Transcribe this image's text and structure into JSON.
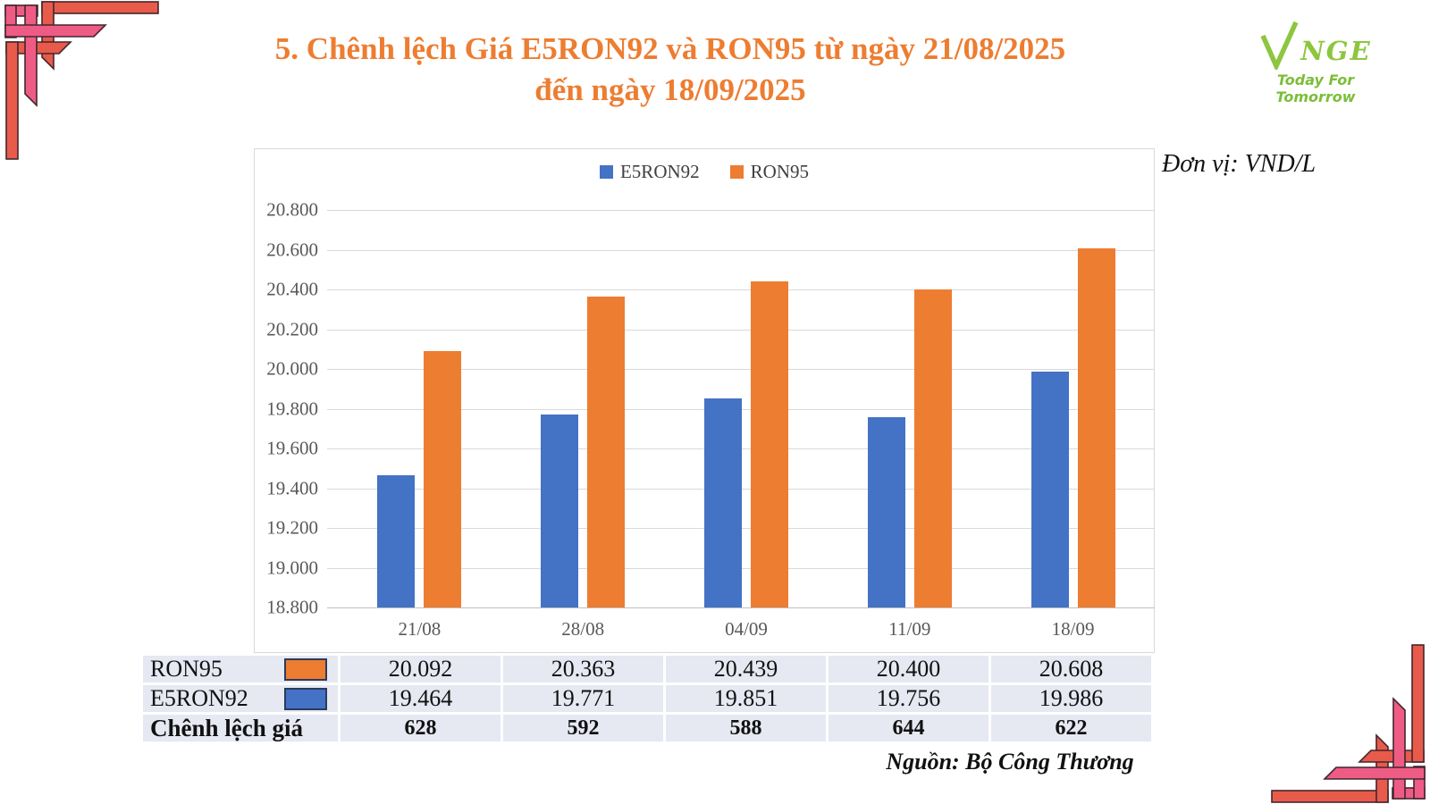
{
  "title": {
    "line1": "5. Chênh lệch Giá E5RON92 và RON95 từ ngày 21/08/2025",
    "line2": "đến ngày 18/09/2025"
  },
  "logo": {
    "brand_rest": "NGE",
    "tagline": "Today For Tomorrow"
  },
  "unit_label": "Đơn vị: VND/L",
  "source_label": "Nguồn: Bộ Công Thương",
  "chart_data": {
    "type": "bar",
    "title": "Chênh lệch Giá E5RON92 và RON95 từ ngày 21/08/2025 đến ngày 18/09/2025",
    "categories": [
      "21/08",
      "28/08",
      "04/09",
      "11/09",
      "18/09"
    ],
    "series": [
      {
        "name": "E5RON92",
        "color": "#4472C4",
        "values": [
          19464,
          19771,
          19851,
          19756,
          19986
        ]
      },
      {
        "name": "RON95",
        "color": "#ED7D31",
        "values": [
          20092,
          20363,
          20439,
          20400,
          20608
        ]
      }
    ],
    "ylim": [
      18800,
      20800
    ],
    "ytick_step": 200,
    "ytick_labels": [
      "20.800",
      "20.600",
      "20.400",
      "20.200",
      "20.000",
      "19.800",
      "19.600",
      "19.400",
      "19.200",
      "19.000",
      "18.800"
    ],
    "ylabel": "VND/L",
    "grid": true,
    "legend_position": "top-center"
  },
  "table": {
    "rows": [
      {
        "label": "RON95",
        "swatch": "#ED7D31",
        "bold": false,
        "values": [
          "20.092",
          "20.363",
          "20.439",
          "20.400",
          "20.608"
        ]
      },
      {
        "label": "E5RON92",
        "swatch": "#4472C4",
        "bold": false,
        "values": [
          "19.464",
          "19.771",
          "19.851",
          "19.756",
          "19.986"
        ]
      },
      {
        "label": "Chênh lệch giá",
        "swatch": null,
        "bold": true,
        "values": [
          "628",
          "592",
          "588",
          "644",
          "622"
        ]
      }
    ]
  },
  "colors": {
    "title": "#ED7D31",
    "bar_blue": "#4472C4",
    "bar_orange": "#ED7D31",
    "logo_green": "#8DC63F",
    "ornament_pink": "#EE5C86",
    "ornament_red": "#E85B4B",
    "grid": "#D9D9D9",
    "axis_text": "#595959",
    "table_bg": "#E6E8F2"
  }
}
